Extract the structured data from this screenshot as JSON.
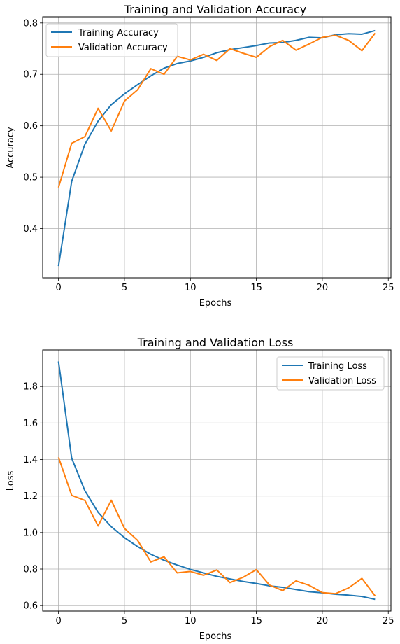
{
  "chart_data": [
    {
      "type": "line",
      "title": "Training and Validation Accuracy",
      "xlabel": "Epochs",
      "ylabel": "Accuracy",
      "xlim": [
        -1.2,
        25.2
      ],
      "ylim": [
        0.304,
        0.812
      ],
      "xticks": [
        0,
        5,
        10,
        15,
        20,
        25
      ],
      "yticks": [
        0.4,
        0.5,
        0.6,
        0.7,
        0.8
      ],
      "xtick_labels": [
        "0",
        "5",
        "10",
        "15",
        "20",
        "25"
      ],
      "ytick_labels": [
        "0.4",
        "0.5",
        "0.6",
        "0.7",
        "0.8"
      ],
      "grid": true,
      "legend_position": "top-left",
      "x": [
        0,
        1,
        2,
        3,
        4,
        5,
        6,
        7,
        8,
        9,
        10,
        11,
        12,
        13,
        14,
        15,
        16,
        17,
        18,
        19,
        20,
        21,
        22,
        23,
        24
      ],
      "series": [
        {
          "name": "Training Accuracy",
          "color": "#1f77b4",
          "values": [
            0.327,
            0.492,
            0.564,
            0.609,
            0.641,
            0.662,
            0.68,
            0.697,
            0.712,
            0.721,
            0.726,
            0.733,
            0.742,
            0.748,
            0.752,
            0.756,
            0.761,
            0.762,
            0.766,
            0.772,
            0.771,
            0.777,
            0.779,
            0.778,
            0.785
          ]
        },
        {
          "name": "Validation Accuracy",
          "color": "#ff7f0e",
          "values": [
            0.48,
            0.566,
            0.579,
            0.634,
            0.59,
            0.648,
            0.67,
            0.711,
            0.7,
            0.735,
            0.728,
            0.739,
            0.727,
            0.75,
            0.741,
            0.733,
            0.754,
            0.766,
            0.747,
            0.759,
            0.772,
            0.776,
            0.766,
            0.746,
            0.78
          ]
        }
      ]
    },
    {
      "type": "line",
      "title": "Training and Validation Loss",
      "xlabel": "Epochs",
      "ylabel": "Loss",
      "xlim": [
        -1.2,
        25.2
      ],
      "ylim": [
        0.57,
        2.0
      ],
      "xticks": [
        0,
        5,
        10,
        15,
        20,
        25
      ],
      "yticks": [
        0.6,
        0.8,
        1.0,
        1.2,
        1.4,
        1.6,
        1.8
      ],
      "xtick_labels": [
        "0",
        "5",
        "10",
        "15",
        "20",
        "25"
      ],
      "ytick_labels": [
        "0.6",
        "0.8",
        "1.0",
        "1.2",
        "1.4",
        "1.6",
        "1.8"
      ],
      "grid": true,
      "legend_position": "top-right",
      "x": [
        0,
        1,
        2,
        3,
        4,
        5,
        6,
        7,
        8,
        9,
        10,
        11,
        12,
        13,
        14,
        15,
        16,
        17,
        18,
        19,
        20,
        21,
        22,
        23,
        24
      ],
      "series": [
        {
          "name": "Training Loss",
          "color": "#1f77b4",
          "values": [
            1.937,
            1.407,
            1.229,
            1.111,
            1.032,
            0.972,
            0.923,
            0.881,
            0.848,
            0.822,
            0.798,
            0.779,
            0.76,
            0.746,
            0.732,
            0.721,
            0.708,
            0.7,
            0.688,
            0.676,
            0.67,
            0.662,
            0.657,
            0.65,
            0.634
          ]
        },
        {
          "name": "Validation Loss",
          "color": "#ff7f0e",
          "values": [
            1.412,
            1.204,
            1.176,
            1.036,
            1.177,
            1.023,
            0.957,
            0.839,
            0.867,
            0.779,
            0.787,
            0.766,
            0.795,
            0.726,
            0.755,
            0.797,
            0.712,
            0.682,
            0.735,
            0.711,
            0.671,
            0.665,
            0.697,
            0.749,
            0.653
          ]
        }
      ]
    }
  ]
}
